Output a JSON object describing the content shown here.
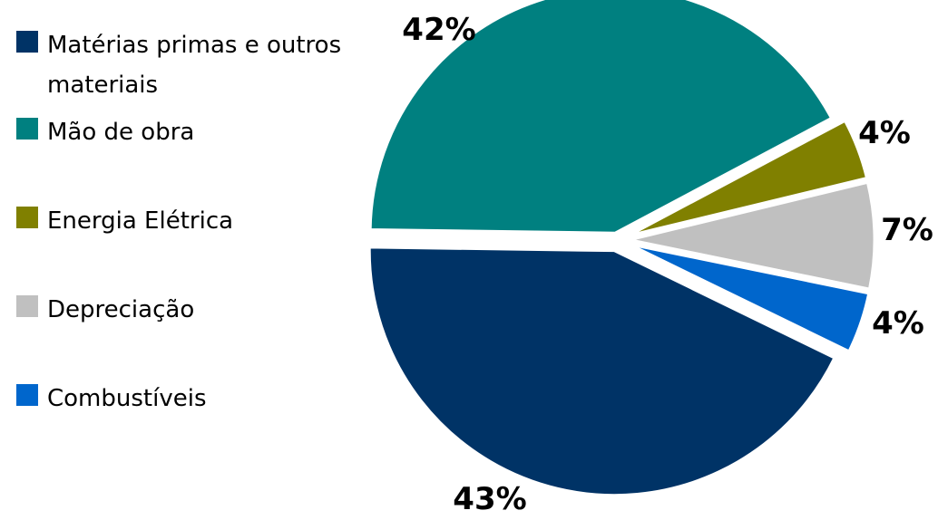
{
  "chart_data": {
    "type": "pie",
    "title": "",
    "slices": [
      {
        "label": "Matérias primas e outros materiais",
        "value": 43,
        "display": "43%",
        "color": "#003366"
      },
      {
        "label": "Mão de obra",
        "value": 42,
        "display": "42%",
        "color": "#008080"
      },
      {
        "label": "Energia Elétrica",
        "value": 4,
        "display": "4%",
        "color": "#808000"
      },
      {
        "label": "Depreciação",
        "value": 7,
        "display": "7%",
        "color": "#C0C0C0"
      },
      {
        "label": "Combustíveis",
        "value": 4,
        "display": "4%",
        "color": "#0066CC"
      }
    ],
    "legend_position": "left",
    "exploded": true
  }
}
